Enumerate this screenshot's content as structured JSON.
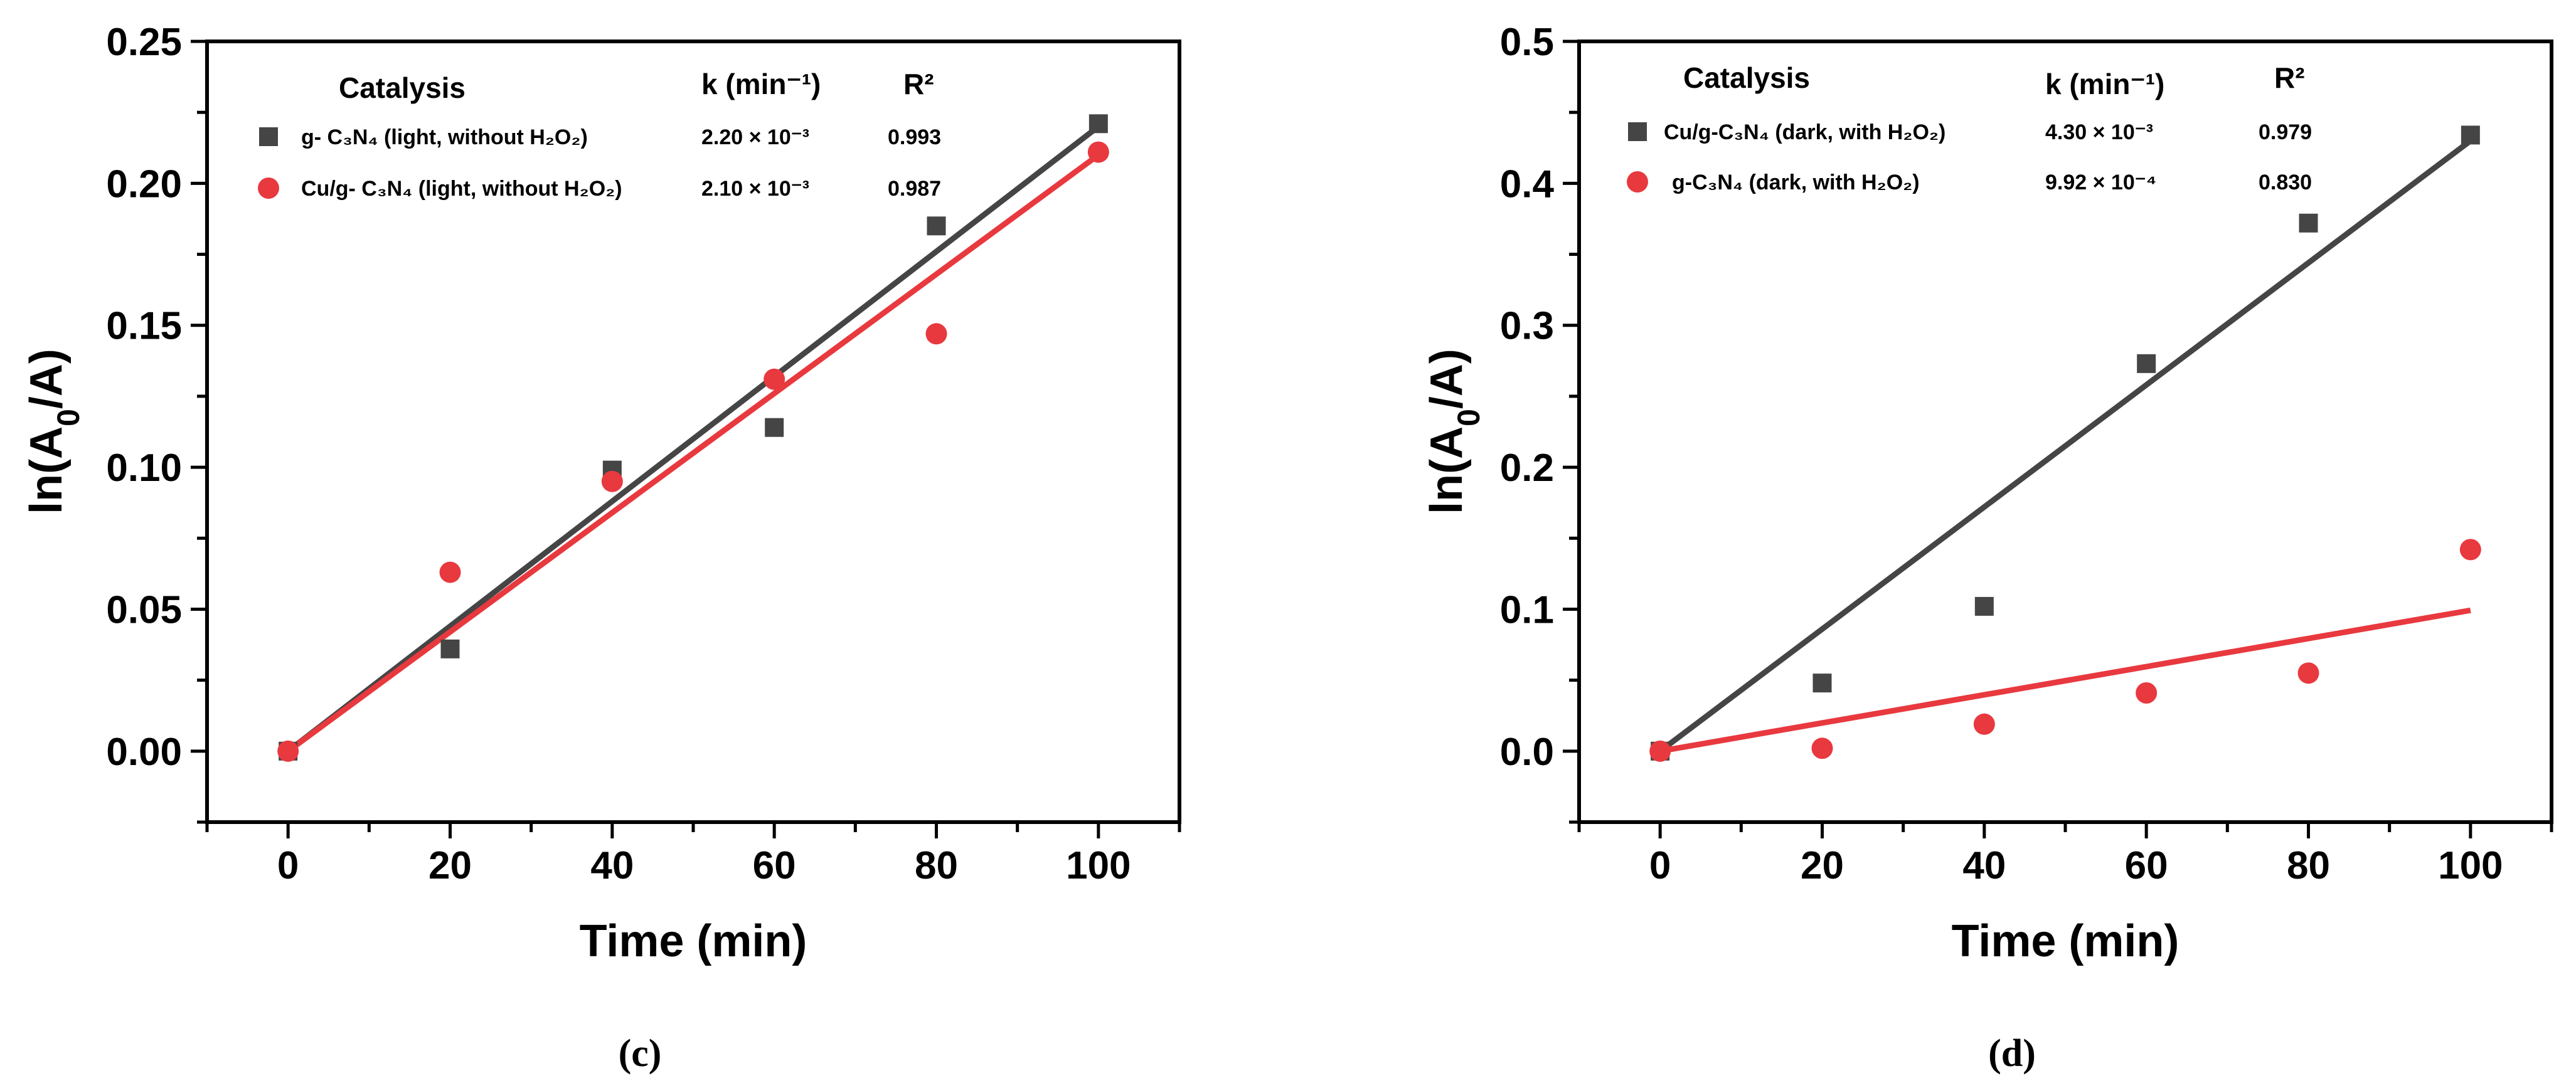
{
  "chart_data": [
    {
      "type": "scatter",
      "panel_label": "(c)",
      "xlabel": "Time (min)",
      "ylabel": "ln(A0/A)",
      "xlim": [
        -10,
        110
      ],
      "ylim": [
        -0.025,
        0.25
      ],
      "xticks": [
        0,
        20,
        40,
        60,
        80,
        100
      ],
      "xtick_labels": [
        "0",
        "20",
        "40",
        "60",
        "80",
        "100"
      ],
      "yticks": [
        0.0,
        0.05,
        0.1,
        0.15,
        0.2,
        0.25
      ],
      "ytick_labels": [
        "0.00",
        "0.05",
        "0.10",
        "0.15",
        "0.20",
        "0.25"
      ],
      "legend": {
        "header_catalysis": "Catalysis",
        "header_k": "k (min⁻¹)",
        "header_r2": "R²"
      },
      "series": [
        {
          "name": "g- C₃N₄ (light, without H₂O₂)",
          "k": "2.20 × 10⁻³",
          "r2": "0.993",
          "color": "#454545",
          "marker": "square",
          "x": [
            0,
            20,
            40,
            60,
            80,
            100
          ],
          "y": [
            0.0,
            0.036,
            0.099,
            0.114,
            0.185,
            0.221
          ],
          "fit_slope": 0.0022
        },
        {
          "name": "Cu/g- C₃N₄ (light, without H₂O₂)",
          "k": "2.10 × 10⁻³",
          "r2": "0.987",
          "color": "#e8393f",
          "marker": "circle",
          "x": [
            0,
            20,
            40,
            60,
            80,
            100
          ],
          "y": [
            0.0,
            0.063,
            0.095,
            0.131,
            0.147,
            0.211
          ],
          "fit_slope": 0.0021
        }
      ]
    },
    {
      "type": "scatter",
      "panel_label": "(d)",
      "xlabel": "Time (min)",
      "ylabel": "ln(A0/A)",
      "xlim": [
        -10,
        110
      ],
      "ylim": [
        -0.05,
        0.5
      ],
      "xticks": [
        0,
        20,
        40,
        60,
        80,
        100
      ],
      "xtick_labels": [
        "0",
        "20",
        "40",
        "60",
        "80",
        "100"
      ],
      "yticks": [
        0.0,
        0.1,
        0.2,
        0.3,
        0.4,
        0.5
      ],
      "ytick_labels": [
        "0.0",
        "0.1",
        "0.2",
        "0.3",
        "0.4",
        "0.5"
      ],
      "legend": {
        "header_catalysis": "Catalysis",
        "header_k": "k (min⁻¹)",
        "header_r2": "R²"
      },
      "series": [
        {
          "name": "Cu/g-C₃N₄ (dark, with H₂O₂)",
          "k": "4.30 × 10⁻³",
          "r2": "0.979",
          "color": "#454545",
          "marker": "square",
          "x": [
            0,
            20,
            40,
            60,
            80,
            100
          ],
          "y": [
            0.0,
            0.048,
            0.102,
            0.273,
            0.372,
            0.434
          ],
          "fit_slope": 0.0043
        },
        {
          "name": "g-C₃N₄ (dark, with H₂O₂)",
          "k": "9.92 × 10⁻⁴",
          "r2": "0.830",
          "color": "#e8393f",
          "marker": "circle",
          "x": [
            0,
            20,
            40,
            60,
            80,
            100
          ],
          "y": [
            0.0,
            0.002,
            0.019,
            0.041,
            0.055,
            0.142
          ],
          "fit_slope": 0.000992
        }
      ]
    }
  ]
}
